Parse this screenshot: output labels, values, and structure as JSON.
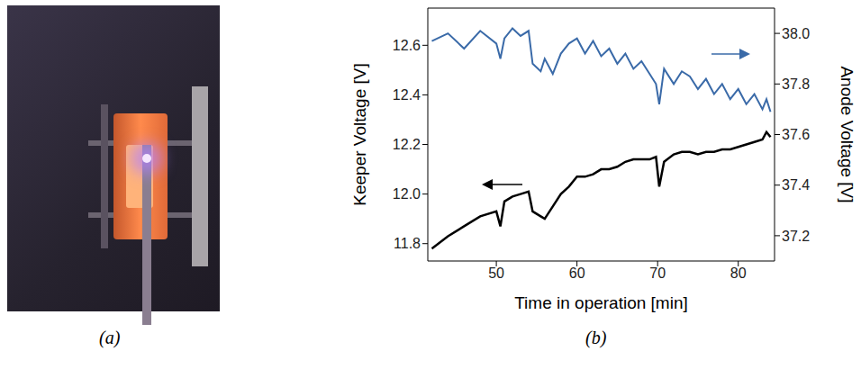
{
  "chart_data": {
    "type": "line",
    "xlabel": "Time in operation [min]",
    "ylabel": "Keeper Voltage [V]",
    "y2label": "Anode Voltage [V]",
    "x": [
      42,
      44,
      46,
      48,
      50,
      50.5,
      51,
      52,
      53,
      54,
      54.5,
      55.5,
      56,
      57,
      58,
      59,
      60,
      61,
      62,
      63,
      64,
      65,
      66,
      67,
      68,
      69,
      69.8,
      70.2,
      70.8,
      72,
      73,
      74,
      75,
      76,
      77,
      78,
      79,
      80,
      81,
      82,
      83,
      83.5,
      84
    ],
    "xlim": [
      41.5,
      84.5
    ],
    "xticks": [
      50,
      60,
      70,
      80
    ],
    "ylim": [
      11.73,
      12.75
    ],
    "yticks": [
      11.8,
      {
        "value": 12,
        "label": "12.0"
      },
      12.2,
      12.4,
      12.6
    ],
    "y2lim": [
      37.1,
      38.1
    ],
    "y2ticks": [
      37.2,
      37.4,
      37.6,
      37.8,
      {
        "value": 38,
        "label": "38.0"
      }
    ],
    "series": [
      {
        "color": "#000000",
        "values": [
          11.78,
          11.83,
          11.87,
          11.91,
          11.93,
          11.87,
          11.97,
          11.99,
          12.0,
          12.01,
          11.93,
          11.91,
          11.9,
          11.95,
          12.0,
          12.03,
          12.07,
          12.07,
          12.08,
          12.1,
          12.1,
          12.11,
          12.13,
          12.14,
          12.14,
          12.14,
          12.15,
          12.03,
          12.13,
          12.16,
          12.17,
          12.17,
          12.16,
          12.17,
          12.17,
          12.18,
          12.18,
          12.19,
          12.2,
          12.21,
          12.22,
          12.25,
          12.23
        ]
      },
      {
        "color": "#3a6aa8",
        "axis": "y2",
        "values": [
          37.97,
          38.0,
          37.94,
          38.01,
          37.96,
          37.9,
          37.98,
          38.02,
          37.99,
          38.01,
          37.88,
          37.85,
          37.9,
          37.84,
          37.92,
          37.96,
          37.98,
          37.92,
          37.97,
          37.91,
          37.94,
          37.88,
          37.92,
          37.86,
          37.89,
          37.84,
          37.8,
          37.72,
          37.86,
          37.8,
          37.85,
          37.83,
          37.78,
          37.82,
          37.76,
          37.8,
          37.74,
          37.78,
          37.72,
          37.76,
          37.7,
          37.74,
          37.69
        ]
      }
    ]
  },
  "captions": [
    "(a)",
    "(b)"
  ]
}
